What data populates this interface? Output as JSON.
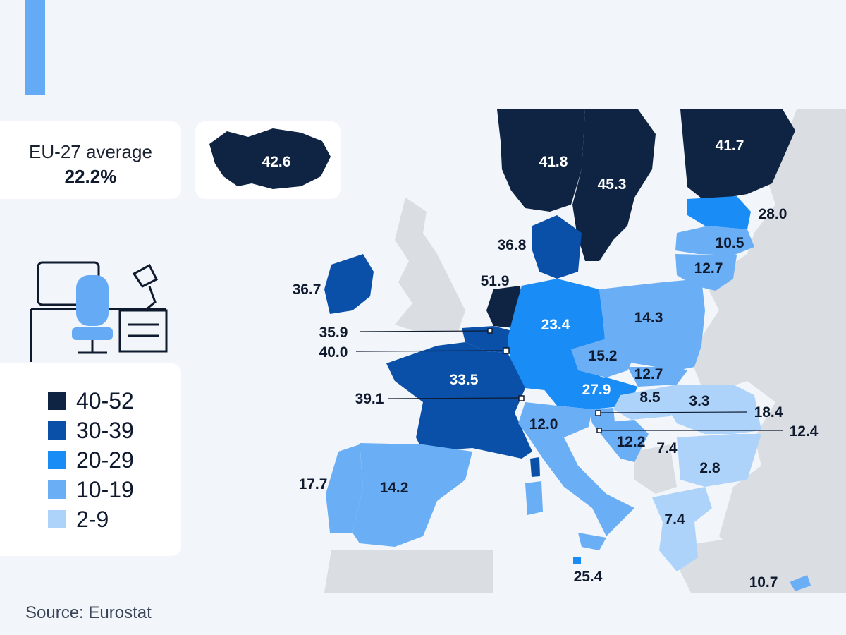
{
  "summary": {
    "label": "EU-27 average",
    "value": "22.2%"
  },
  "legend": [
    {
      "label": "40-52",
      "color": "#0f2342"
    },
    {
      "label": "30-39",
      "color": "#0a4fa8"
    },
    {
      "label": "20-29",
      "color": "#1a8cf5"
    },
    {
      "label": "10-19",
      "color": "#6aaef5"
    },
    {
      "label": "2-9",
      "color": "#add3fa"
    }
  ],
  "values": {
    "iceland": "42.6",
    "norway": "41.8",
    "sweden": "45.3",
    "finland": "41.7",
    "estonia": "28.0",
    "latvia": "10.5",
    "lithuania": "12.7",
    "denmark": "36.8",
    "ireland": "36.7",
    "netherlands": "51.9",
    "belgium": "35.9",
    "luxembourg": "40.0",
    "germany": "23.4",
    "poland": "14.3",
    "czechia": "15.2",
    "slovakia": "12.7",
    "austria": "27.9",
    "hungary": "8.5",
    "romania": "3.3",
    "slovenia": "18.4",
    "croatia": "12.4",
    "france": "33.5",
    "switzerland": "39.1",
    "italy": "12.0",
    "bosnia": "12.2",
    "serbia": "7.4",
    "bulgaria": "2.8",
    "greece": "7.4",
    "portugal": "17.7",
    "spain": "14.2",
    "malta": "25.4",
    "cyprus": "10.7"
  },
  "source": "Source: Eurostat"
}
